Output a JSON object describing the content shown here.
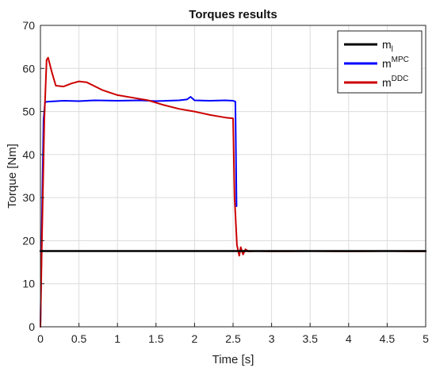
{
  "chart_data": {
    "type": "line",
    "title": "Torques results",
    "xlabel": "Time [s]",
    "ylabel": "Torque [Nm]",
    "xlim": [
      0,
      5
    ],
    "ylim": [
      0,
      70
    ],
    "x_ticks": [
      "0",
      "0.5",
      "1",
      "1.5",
      "2",
      "2.5",
      "3",
      "3.5",
      "4",
      "4.5",
      "5"
    ],
    "y_ticks": [
      "0",
      "10",
      "20",
      "30",
      "40",
      "50",
      "60",
      "70"
    ],
    "grid": true,
    "legend_position": "top-right",
    "series": [
      {
        "name": "m",
        "subscript": "l",
        "color": "#000000",
        "x": [
          0,
          5
        ],
        "y": [
          17.6,
          17.6
        ]
      },
      {
        "name": "m",
        "superscript": "MPC",
        "color": "#0000ff",
        "x": [
          0,
          0.02,
          0.04,
          0.06,
          0.1,
          0.3,
          0.5,
          0.7,
          1.0,
          1.3,
          1.5,
          1.8,
          1.9,
          1.95,
          2.0,
          2.2,
          2.4,
          2.5,
          2.53,
          2.545
        ],
        "y": [
          0,
          25,
          48,
          52.2,
          52.3,
          52.5,
          52.4,
          52.6,
          52.5,
          52.6,
          52.4,
          52.6,
          52.8,
          53.4,
          52.6,
          52.5,
          52.6,
          52.5,
          52.3,
          28
        ]
      },
      {
        "name": "m",
        "superscript": "DDC",
        "color": "#cc0000",
        "x": [
          0,
          0.02,
          0.05,
          0.08,
          0.1,
          0.15,
          0.2,
          0.3,
          0.4,
          0.5,
          0.6,
          0.7,
          0.8,
          1.0,
          1.2,
          1.4,
          1.6,
          1.8,
          2.0,
          2.2,
          2.4,
          2.5,
          2.52,
          2.55,
          2.58,
          2.6,
          2.63,
          2.66,
          2.7,
          2.8,
          3.0,
          3.5,
          4.0,
          4.5,
          5.0
        ],
        "y": [
          0,
          20,
          48,
          62,
          62.5,
          59,
          56,
          55.8,
          56.5,
          57,
          56.8,
          55.9,
          55,
          53.8,
          53.2,
          52.6,
          51.5,
          50.6,
          50,
          49.2,
          48.6,
          48.4,
          30,
          19,
          16.5,
          18.5,
          16.8,
          18,
          17.5,
          17.6,
          17.5,
          17.6,
          17.5,
          17.6,
          17.5
        ]
      }
    ]
  }
}
